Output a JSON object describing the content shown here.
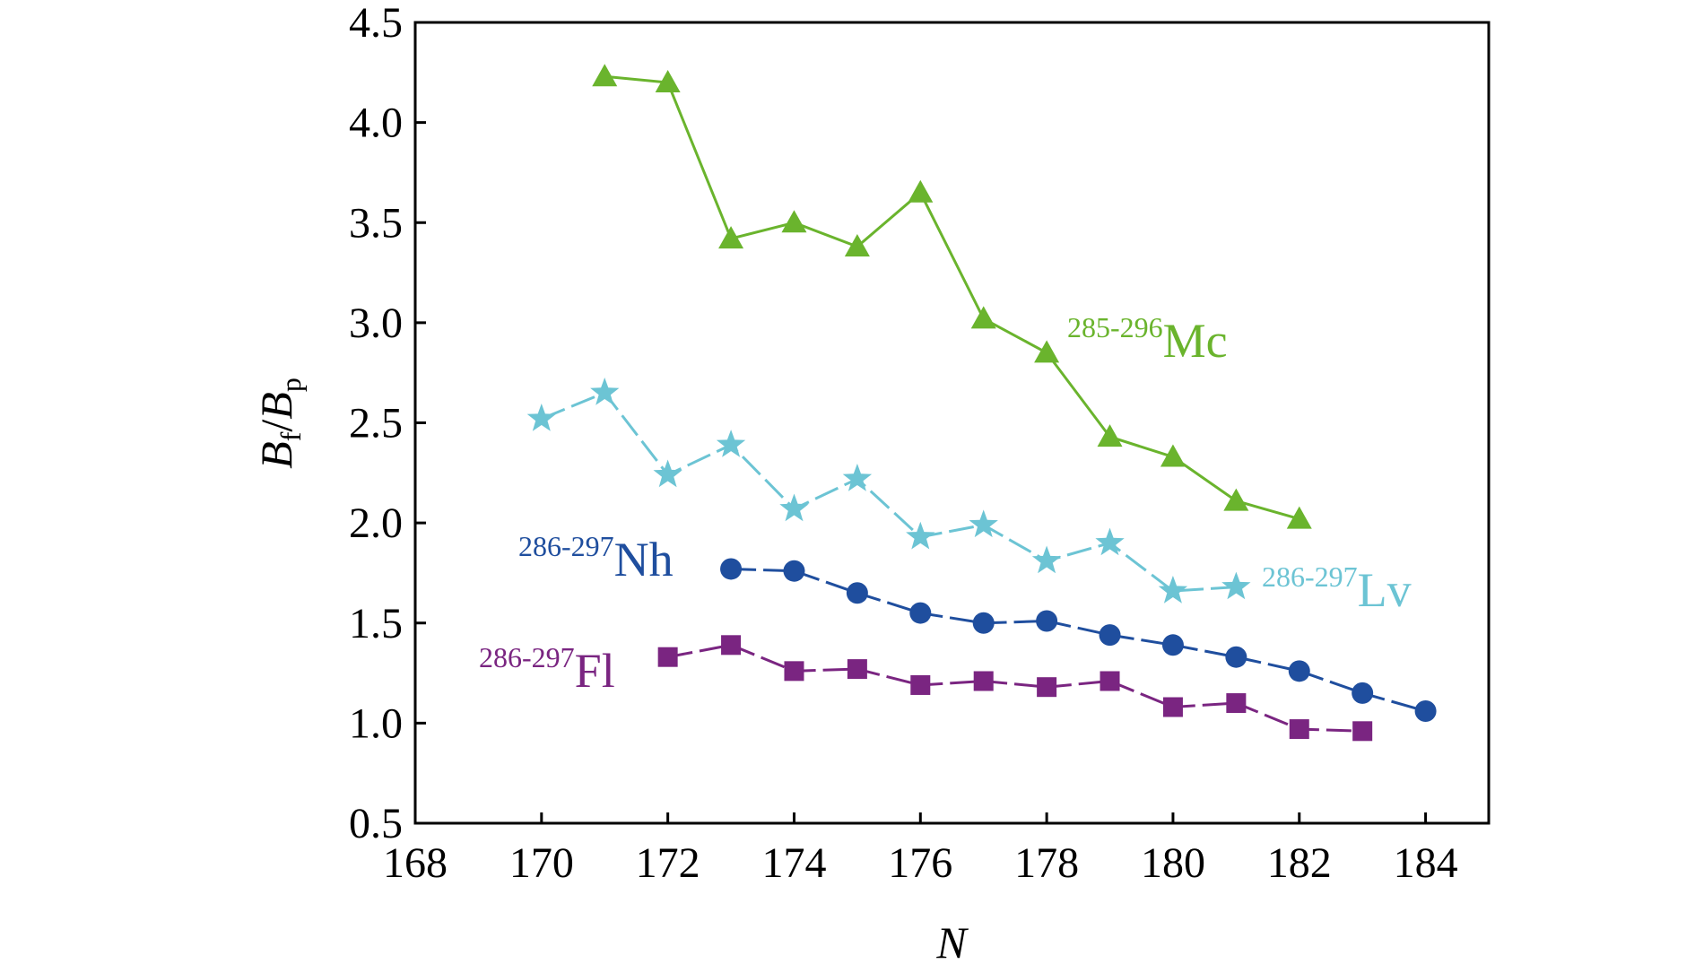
{
  "chart_data": {
    "type": "line",
    "xlabel": "N",
    "ylabel": {
      "main": "B",
      "sub1": "f",
      "slash": "/",
      "main2": "B",
      "sub2": "p"
    },
    "xlim": [
      168,
      185
    ],
    "ylim": [
      0.5,
      4.5
    ],
    "x_ticks": [
      "168",
      "170",
      "172",
      "174",
      "176",
      "178",
      "180",
      "182",
      "184"
    ],
    "y_ticks": [
      "0.5",
      "1.0",
      "1.5",
      "2.0",
      "2.5",
      "3.0",
      "3.5",
      "4.0",
      "4.5"
    ],
    "grid": false,
    "legend": "none",
    "series": [
      {
        "name": "Mc",
        "label_sup": "285-296",
        "label_main": "Mc",
        "color": "#6ab42d",
        "marker": "triangle",
        "dash": "solid",
        "x": [
          171,
          172,
          173,
          174,
          175,
          176,
          177,
          178,
          179,
          180,
          181,
          182
        ],
        "y": [
          4.23,
          4.2,
          3.42,
          3.5,
          3.38,
          3.65,
          3.02,
          2.85,
          2.43,
          2.33,
          2.11,
          2.02
        ]
      },
      {
        "name": "Lv",
        "label_sup": "286-297",
        "label_main": "Lv",
        "color": "#6cc4d4",
        "marker": "star",
        "dash": "dashed",
        "x": [
          170,
          171,
          172,
          173,
          174,
          175,
          176,
          177,
          178,
          179,
          180,
          181
        ],
        "y": [
          2.52,
          2.65,
          2.24,
          2.39,
          2.07,
          2.22,
          1.93,
          1.99,
          1.81,
          1.9,
          1.66,
          1.68
        ]
      },
      {
        "name": "Nh",
        "label_sup": "286-297",
        "label_main": "Nh",
        "color": "#1f4e9e",
        "marker": "circle",
        "dash": "dashed",
        "x": [
          173,
          174,
          175,
          176,
          177,
          178,
          179,
          180,
          181,
          182,
          183,
          184
        ],
        "y": [
          1.77,
          1.76,
          1.65,
          1.55,
          1.5,
          1.51,
          1.44,
          1.39,
          1.33,
          1.26,
          1.15,
          1.06
        ]
      },
      {
        "name": "Fl",
        "label_sup": "286-297",
        "label_main": "Fl",
        "color": "#7a2581",
        "marker": "square",
        "dash": "dashed",
        "x": [
          172,
          173,
          174,
          175,
          176,
          177,
          178,
          179,
          180,
          181,
          182,
          183
        ],
        "y": [
          1.33,
          1.39,
          1.26,
          1.27,
          1.19,
          1.21,
          1.18,
          1.21,
          1.08,
          1.1,
          0.97,
          0.96
        ]
      }
    ]
  }
}
